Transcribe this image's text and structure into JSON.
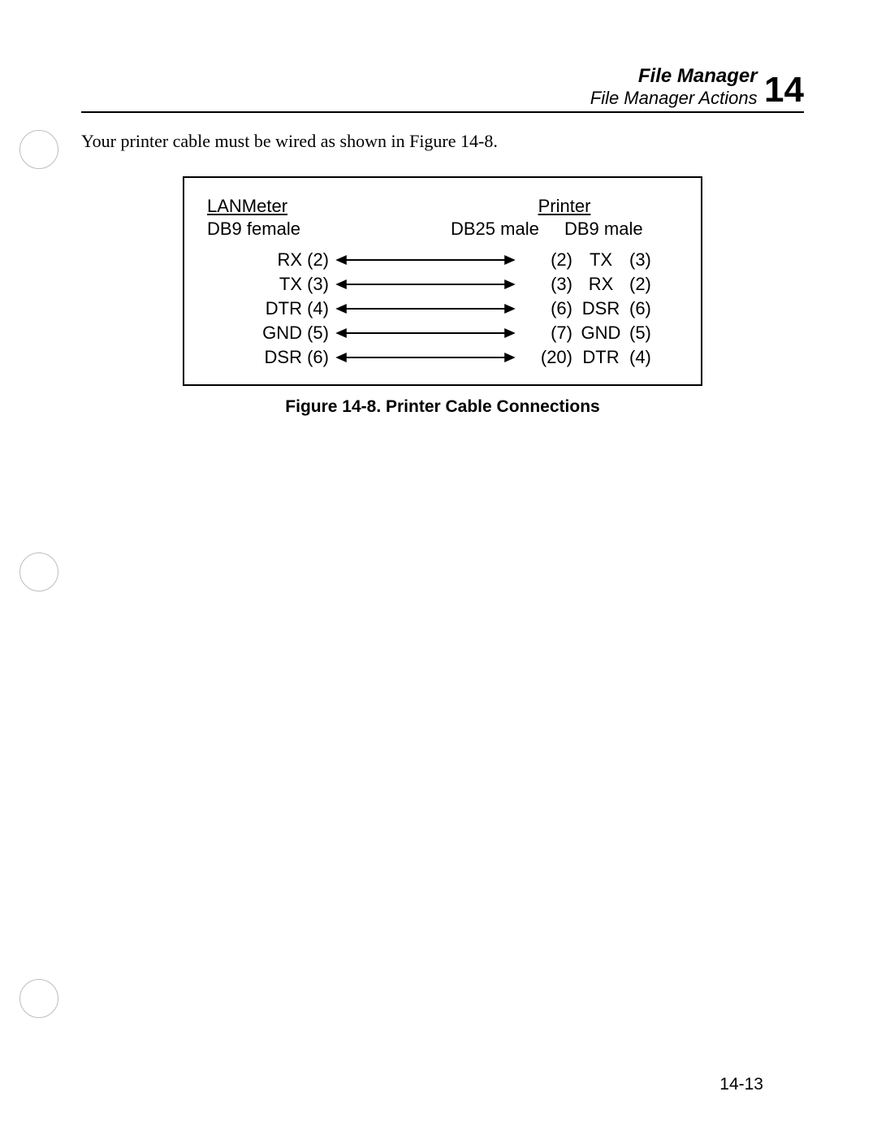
{
  "header": {
    "title_line1": "File Manager",
    "title_line2": "File Manager Actions",
    "chapter_number": "14"
  },
  "intro_text": "Your printer cable must be wired as shown in Figure 14-8.",
  "figure": {
    "left_header": "LANMeter",
    "left_subheader": "DB9 female",
    "right_header": "Printer",
    "right_sub_db25": "DB25 male",
    "right_sub_db9": "DB9 male",
    "rows": [
      {
        "left_signal": "RX",
        "left_pin": "(2)",
        "db25_pin": "(2)",
        "signal": "TX",
        "db9_pin": "(3)"
      },
      {
        "left_signal": "TX",
        "left_pin": "(3)",
        "db25_pin": "(3)",
        "signal": "RX",
        "db9_pin": "(2)"
      },
      {
        "left_signal": "DTR",
        "left_pin": "(4)",
        "db25_pin": "(6)",
        "signal": "DSR",
        "db9_pin": "(6)"
      },
      {
        "left_signal": "GND",
        "left_pin": "(5)",
        "db25_pin": "(7)",
        "signal": "GND",
        "db9_pin": "(5)"
      },
      {
        "left_signal": "DSR",
        "left_pin": "(6)",
        "db25_pin": "(20)",
        "signal": "DTR",
        "db9_pin": "(4)"
      }
    ],
    "caption": "Figure 14-8.  Printer Cable Connections",
    "arrow_color": "#000000",
    "arrow_stroke_width": 2,
    "border_color": "#000000"
  },
  "page_number": "14-13",
  "colors": {
    "text": "#000000",
    "background": "#ffffff",
    "binder_circle": "#bdbdbd"
  },
  "fonts": {
    "body_serif": "Georgia, Times New Roman, serif",
    "ui_sans": "Helvetica, Arial, sans-serif",
    "header_size_pt": 18,
    "chapter_num_size_pt": 33,
    "body_size_pt": 16,
    "caption_size_pt": 16
  }
}
